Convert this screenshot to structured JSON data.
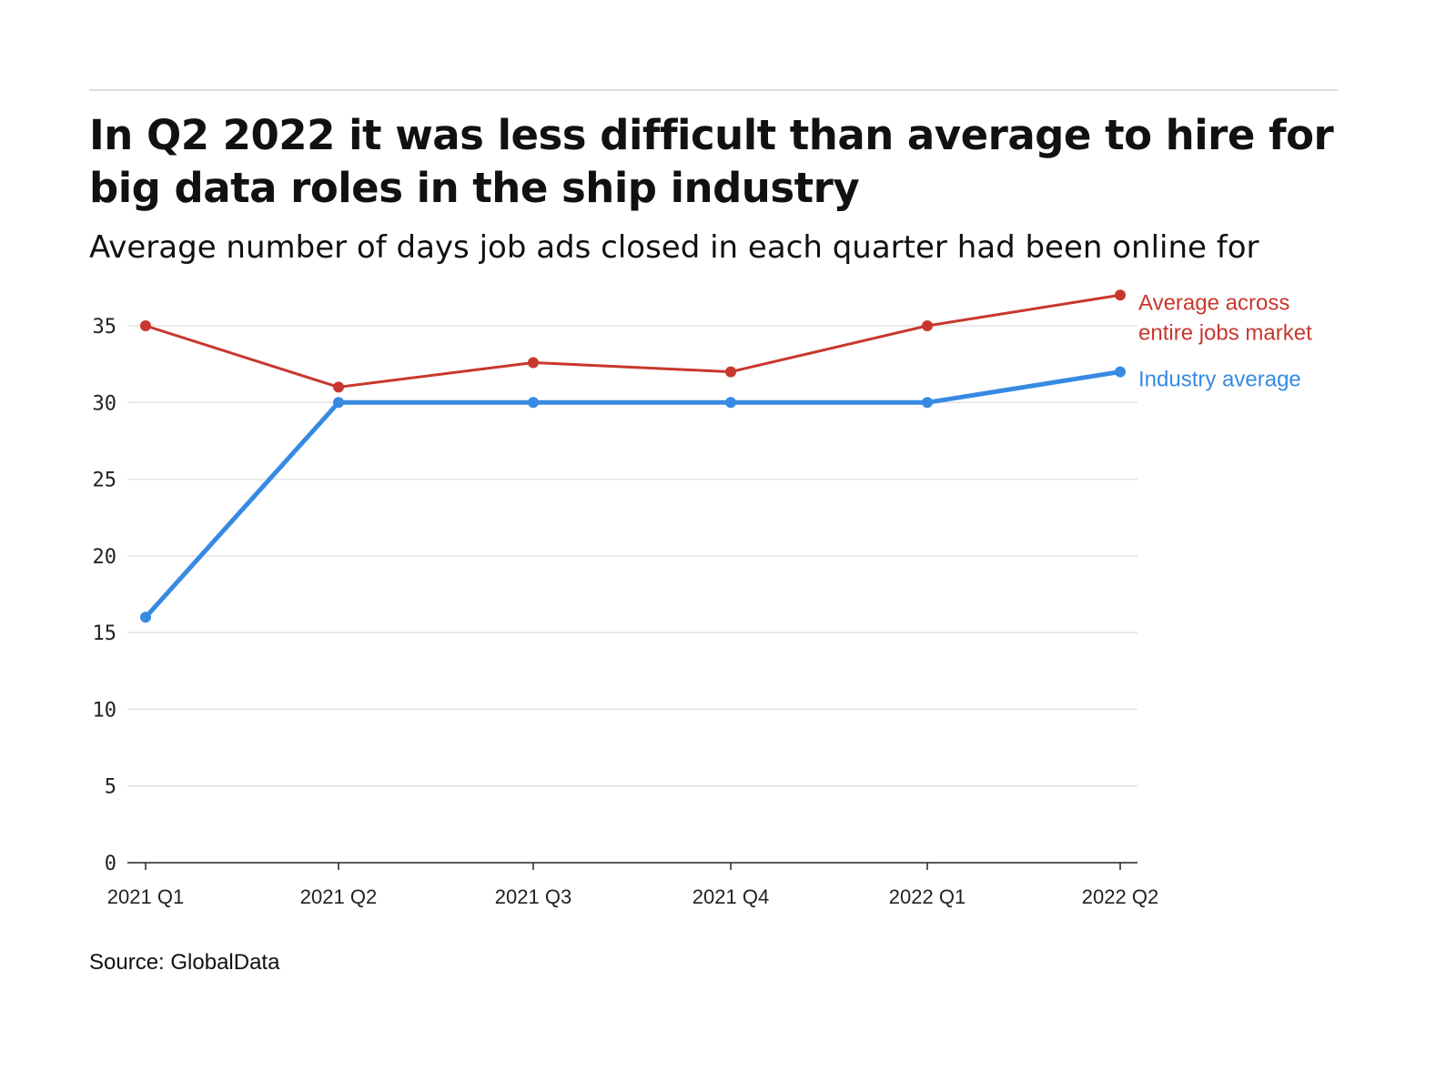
{
  "title": "In Q2 2022 it was less difficult than average to hire for big data roles in the ship industry",
  "subtitle": "Average number of days job ads closed in each quarter had been online for",
  "source": "Source: GlobalData",
  "chart_data": {
    "type": "line",
    "title": "In Q2 2022 it was less difficult than average to hire for big data roles in the ship industry",
    "subtitle": "Average number of days job ads closed in each quarter had been online for",
    "categories": [
      "2021 Q1",
      "2021 Q2",
      "2021 Q3",
      "2021 Q4",
      "2022 Q1",
      "2022 Q2"
    ],
    "yticks": [
      0,
      5,
      10,
      15,
      20,
      25,
      30,
      35
    ],
    "ylim": [
      0,
      37
    ],
    "grid": true,
    "legend": "right, inline labels at line ends",
    "series": [
      {
        "name": "Average across entire jobs market",
        "label_lines": [
          "Average across",
          "entire jobs market"
        ],
        "color": "#c8372d",
        "values": [
          35,
          31,
          32.6,
          32,
          35,
          37
        ]
      },
      {
        "name": "Industry average",
        "label_lines": [
          "Industry average"
        ],
        "color": "#378ae2",
        "values": [
          16,
          30,
          30,
          30,
          30,
          32
        ]
      }
    ]
  }
}
